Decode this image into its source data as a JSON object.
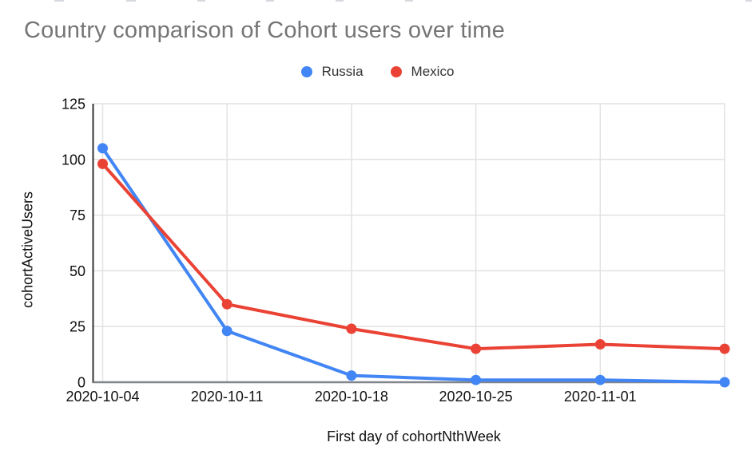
{
  "chart_data": {
    "type": "line",
    "title": "Country comparison of Cohort users over time",
    "xlabel": "First day of cohortNthWeek",
    "ylabel": "cohortActiveUsers",
    "x_tick_labels": [
      "2020-10-04",
      "2020-10-11",
      "2020-10-18",
      "2020-10-25",
      "2020-11-01",
      ""
    ],
    "y_ticks": [
      0,
      25,
      50,
      75,
      100,
      125
    ],
    "ylim": [
      0,
      125
    ],
    "grid": true,
    "legend_position": "top",
    "series": [
      {
        "name": "Russia",
        "color": "#4285F4",
        "values": [
          105,
          23,
          3,
          1,
          1,
          0
        ]
      },
      {
        "name": "Mexico",
        "color": "#EA4335",
        "values": [
          98,
          35,
          24,
          15,
          17,
          15
        ]
      }
    ],
    "colors": {
      "title": "#757575",
      "tick_label": "#111111",
      "axis_line": "#333333",
      "baseline": "#80868b",
      "gridline": "#e2e2e2",
      "background": "#ffffff"
    }
  }
}
